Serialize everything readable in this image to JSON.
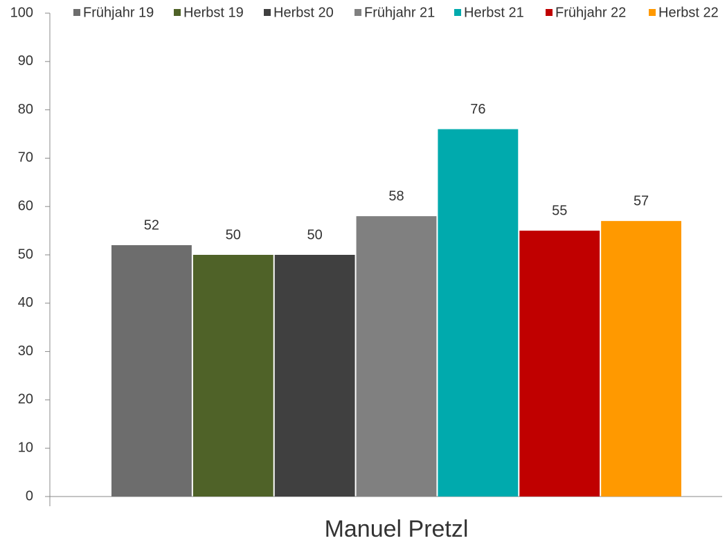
{
  "chart_data": {
    "type": "bar",
    "categories": [
      "Manuel Pretzl"
    ],
    "series": [
      {
        "name": "Frühjahr 19",
        "color": "#6d6d6d",
        "values": [
          52
        ]
      },
      {
        "name": "Herbst 19",
        "color": "#4f6228",
        "values": [
          50
        ]
      },
      {
        "name": "Herbst 20",
        "color": "#404040",
        "values": [
          50
        ]
      },
      {
        "name": "Frühjahr 21",
        "color": "#808080",
        "values": [
          58
        ]
      },
      {
        "name": "Herbst 21",
        "color": "#00aaad",
        "values": [
          76
        ]
      },
      {
        "name": "Frühjahr 22",
        "color": "#c00000",
        "values": [
          55
        ]
      },
      {
        "name": "Herbst 22",
        "color": "#ff9900",
        "values": [
          57
        ]
      }
    ],
    "ylim": [
      0,
      100
    ],
    "yticks": [
      0,
      10,
      20,
      30,
      40,
      50,
      60,
      70,
      80,
      90,
      100
    ],
    "legend": "top"
  }
}
